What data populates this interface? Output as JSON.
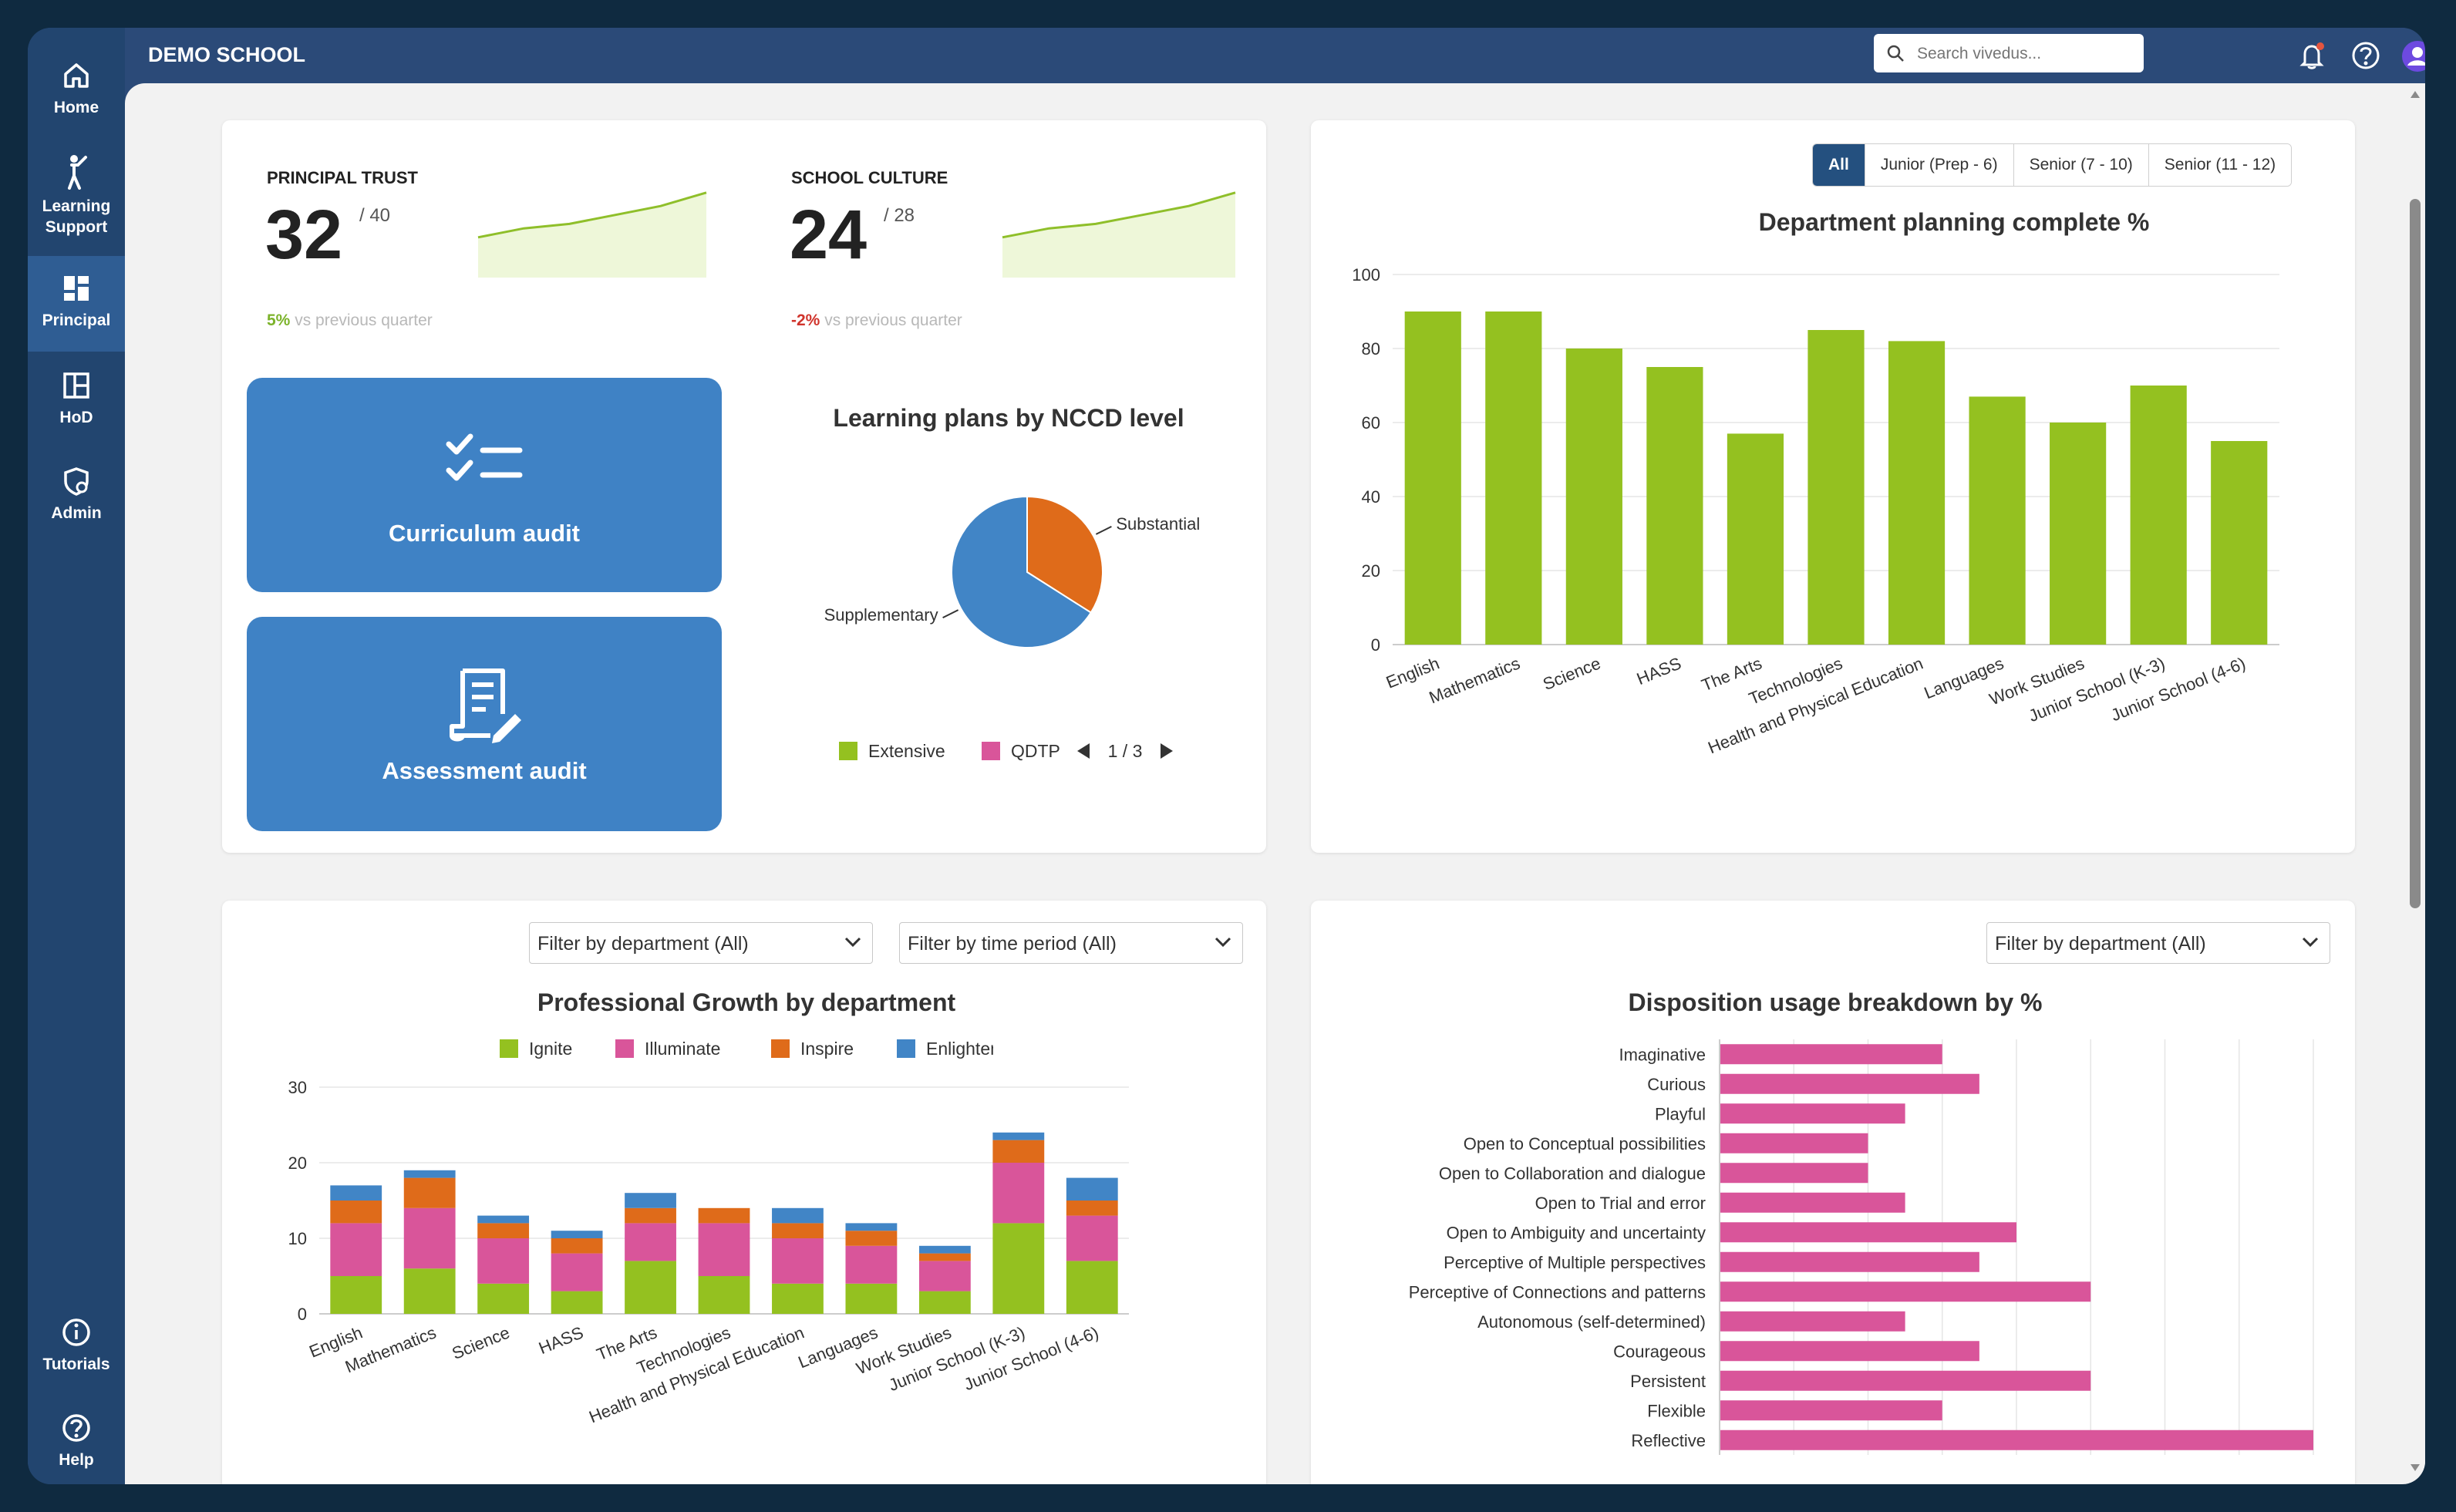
{
  "app": {
    "school_name": "DEMO SCHOOL"
  },
  "search": {
    "placeholder": "Search vivedus..."
  },
  "sidebar": {
    "items": [
      {
        "label": "Home",
        "icon": "home-icon"
      },
      {
        "label": "Learning Support",
        "icon": "person-icon"
      },
      {
        "label": "Principal",
        "icon": "dashboard-icon"
      },
      {
        "label": "HoD",
        "icon": "layout-icon"
      },
      {
        "label": "Admin",
        "icon": "shield-gear-icon"
      },
      {
        "label": "Tutorials",
        "icon": "info-icon"
      },
      {
        "label": "Help",
        "icon": "help-icon"
      }
    ],
    "active": "Principal"
  },
  "kpis": [
    {
      "title": "PRINCIPAL TRUST",
      "value": "32",
      "max": "/ 40",
      "delta": "5%",
      "delta_text": "vs previous quarter",
      "trend": [
        0.45,
        0.55,
        0.6,
        0.7,
        0.8,
        0.95
      ]
    },
    {
      "title": "SCHOOL CULTURE",
      "value": "24",
      "max": "/ 28",
      "delta": "-2%",
      "delta_text": "vs previous quarter",
      "trend": [
        0.45,
        0.55,
        0.6,
        0.7,
        0.8,
        0.95
      ]
    }
  ],
  "actions": {
    "curriculum": "Curriculum audit",
    "assessment": "Assessment audit"
  },
  "filters": {
    "department": "Filter by department (All)",
    "time_period": "Filter by time period (All)",
    "department_2": "Filter by department (All)"
  },
  "tabs": [
    "All",
    "Junior (Prep - 6)",
    "Senior (7 - 10)",
    "Senior (11 - 12)"
  ],
  "colors": {
    "green": "#94c120",
    "pink": "#d9559a",
    "orange": "#df6b1a",
    "blue": "#4185c6",
    "pie_blue": "#4185c6",
    "pie_orange": "#df6b1a"
  },
  "chart_data": [
    {
      "type": "pie",
      "title": "Learning plans by NCCD level",
      "slices": [
        {
          "label": "Substantial",
          "value": 34,
          "color": "#df6b1a"
        },
        {
          "label": "Supplementary",
          "value": 66,
          "color": "#4185c6"
        }
      ],
      "legend": [
        {
          "label": "Extensive",
          "color": "#94c120"
        },
        {
          "label": "QDTP",
          "color": "#d9559a"
        }
      ],
      "pager": "1 / 3"
    },
    {
      "type": "bar",
      "title": "Department planning complete %",
      "categories": [
        "English",
        "Mathematics",
        "Science",
        "HASS",
        "The Arts",
        "Technologies",
        "Health and Physical Education",
        "Languages",
        "Work Studies",
        "Junior School (K-3)",
        "Junior School (4-6)"
      ],
      "values": [
        90,
        90,
        80,
        75,
        57,
        85,
        82,
        67,
        60,
        70,
        55
      ],
      "ylim": [
        0,
        100
      ],
      "yticks": [
        0,
        20,
        40,
        60,
        80,
        100
      ],
      "color": "#94c120"
    },
    {
      "type": "bar",
      "stacked": true,
      "title": "Professional Growth by department",
      "categories": [
        "English",
        "Mathematics",
        "Science",
        "HASS",
        "The Arts",
        "Technologies",
        "Health and Physical Education",
        "Languages",
        "Work Studies",
        "Junior School (K-3)",
        "Junior School (4-6)"
      ],
      "series": [
        {
          "name": "Ignite",
          "color": "#94c120",
          "values": [
            5,
            6,
            4,
            3,
            7,
            5,
            4,
            4,
            3,
            12,
            7
          ]
        },
        {
          "name": "Illuminate",
          "color": "#d9559a",
          "values": [
            7,
            8,
            6,
            5,
            5,
            7,
            6,
            5,
            4,
            8,
            6
          ]
        },
        {
          "name": "Inspire",
          "color": "#df6b1a",
          "values": [
            3,
            4,
            2,
            2,
            2,
            2,
            2,
            2,
            1,
            3,
            2
          ]
        },
        {
          "name": "Enlighten",
          "color": "#4185c6",
          "values": [
            2,
            1,
            1,
            1,
            2,
            0,
            2,
            1,
            1,
            1,
            3
          ]
        }
      ],
      "ylim": [
        0,
        30
      ],
      "yticks": [
        0,
        10,
        20,
        30
      ]
    },
    {
      "type": "bar",
      "orientation": "horizontal",
      "title": "Disposition usage breakdown by %",
      "categories": [
        "Imaginative",
        "Curious",
        "Playful",
        "Open to Conceptual possibilities",
        "Open to Collaboration and dialogue",
        "Open to Trial and error",
        "Open to Ambiguity and uncertainty",
        "Perceptive of Multiple perspectives",
        "Perceptive of Connections and patterns",
        "Autonomous (self-determined)",
        "Courageous",
        "Persistent",
        "Flexible",
        "Reflective"
      ],
      "values": [
        6,
        7,
        5,
        4,
        4,
        5,
        8,
        7,
        10,
        5,
        7,
        10,
        6,
        16
      ],
      "xlim": [
        0,
        16
      ],
      "color": "#d9559a"
    }
  ]
}
